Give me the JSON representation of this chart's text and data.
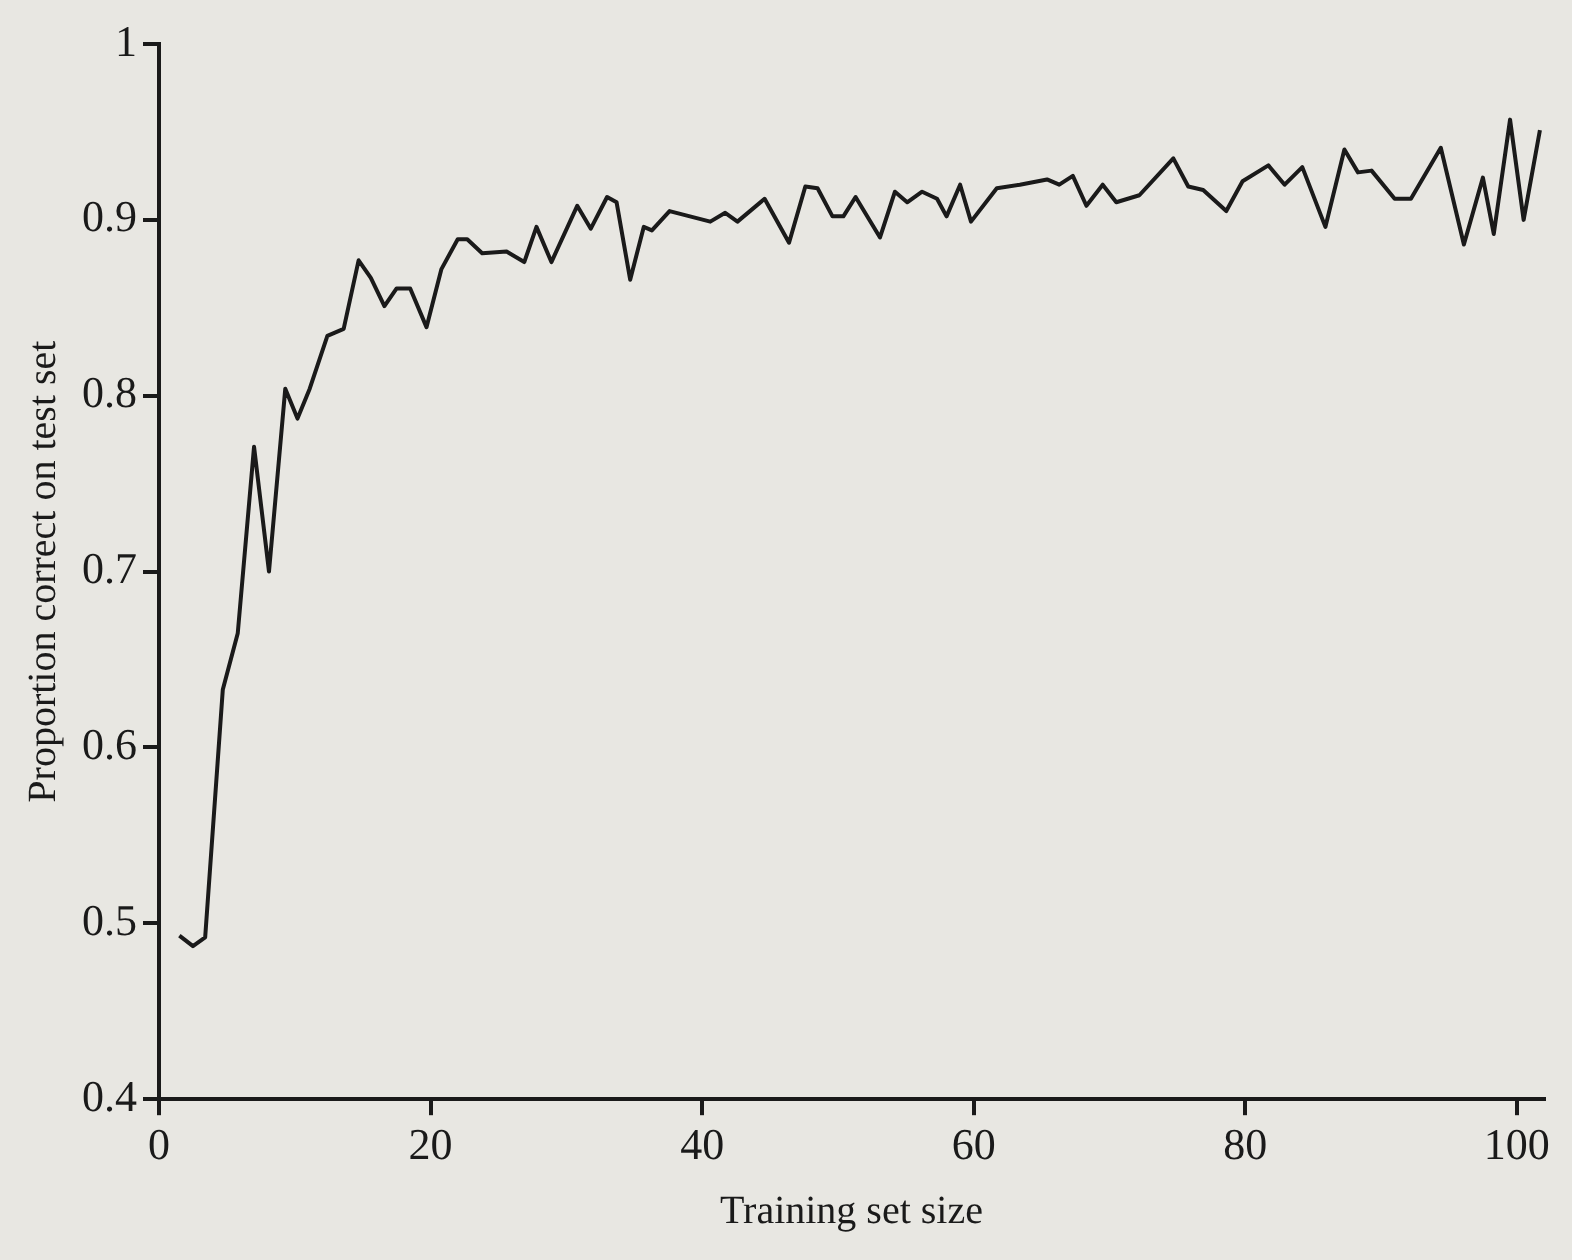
{
  "chart_data": {
    "type": "line",
    "xlabel": "Training set size",
    "ylabel": "Proportion correct on test set",
    "xlim": [
      0,
      102
    ],
    "ylim": [
      0.4,
      1
    ],
    "xticks": [
      0,
      20,
      40,
      60,
      80,
      100
    ],
    "yticks": [
      0.4,
      0.5,
      0.6,
      0.7,
      0.8,
      0.9,
      1
    ],
    "grid": false,
    "legend": false,
    "marker": "none",
    "line_style": "solid",
    "series": [
      {
        "color": "#1a1a1a",
        "x": [
          1.5,
          2.5,
          3.4,
          4.7,
          5.8,
          7,
          8.1,
          9.3,
          10.2,
          11.1,
          12.4,
          13.6,
          14.7,
          15.6,
          16.6,
          17.5,
          18.5,
          19.7,
          20.8,
          22,
          22.7,
          23.8,
          25.6,
          26.9,
          27.8,
          28.9,
          30.8,
          31.8,
          33,
          33.7,
          34.7,
          35.7,
          36.3,
          37.6,
          40.6,
          41.7,
          42.6,
          44.6,
          46.4,
          47.6,
          48.5,
          49.6,
          50.4,
          51.3,
          53.1,
          54.2,
          55.1,
          56.2,
          57.3,
          58,
          59,
          59.8,
          61.7,
          63.4,
          65.4,
          66.3,
          67.3,
          68.3,
          69.5,
          70.5,
          72.2,
          74.7,
          75.8,
          76.9,
          78.6,
          79.8,
          81.7,
          82.9,
          84.2,
          85.9,
          87.3,
          88.3,
          89.3,
          91,
          92.2,
          94.4,
          96.1,
          97.5,
          98.3,
          99.5,
          100.5,
          101.7
        ],
        "values": [
          0.493,
          0.487,
          0.492,
          0.633,
          0.665,
          0.771,
          0.7,
          0.804,
          0.787,
          0.804,
          0.834,
          0.838,
          0.877,
          0.867,
          0.851,
          0.861,
          0.861,
          0.839,
          0.872,
          0.889,
          0.889,
          0.881,
          0.882,
          0.876,
          0.896,
          0.876,
          0.908,
          0.895,
          0.913,
          0.91,
          0.866,
          0.896,
          0.894,
          0.905,
          0.899,
          0.904,
          0.899,
          0.912,
          0.887,
          0.919,
          0.918,
          0.902,
          0.902,
          0.913,
          0.89,
          0.916,
          0.91,
          0.916,
          0.912,
          0.902,
          0.92,
          0.899,
          0.918,
          0.92,
          0.923,
          0.92,
          0.925,
          0.908,
          0.92,
          0.91,
          0.914,
          0.935,
          0.919,
          0.917,
          0.905,
          0.922,
          0.931,
          0.92,
          0.93,
          0.896,
          0.94,
          0.927,
          0.928,
          0.912,
          0.912,
          0.941,
          0.886,
          0.924,
          0.892,
          0.957,
          0.9,
          0.951
        ]
      }
    ]
  }
}
